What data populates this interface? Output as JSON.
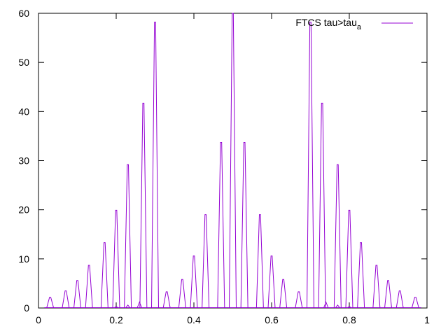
{
  "chart_data": {
    "type": "line",
    "title": "",
    "xlabel": "",
    "ylabel": "",
    "xlim": [
      0,
      1
    ],
    "ylim": [
      0,
      60
    ],
    "x_ticks": [
      "0",
      "0.2",
      "0.4",
      "0.6",
      "0.8",
      "1"
    ],
    "y_ticks": [
      "0",
      "10",
      "20",
      "30",
      "40",
      "50",
      "60"
    ],
    "grid": false,
    "legend_position": "top-right",
    "series": [
      {
        "name": "FTCS tau>tau",
        "name_subscript": "a",
        "color": "#9400d3",
        "peaks": [
          {
            "x": 0.03,
            "y": 2.2
          },
          {
            "x": 0.07,
            "y": 3.5
          },
          {
            "x": 0.1,
            "y": 5.6
          },
          {
            "x": 0.13,
            "y": 8.7
          },
          {
            "x": 0.17,
            "y": 13.3
          },
          {
            "x": 0.2,
            "y": 19.9
          },
          {
            "x": 0.23,
            "y": 29.2
          },
          {
            "x": 0.27,
            "y": 41.7
          },
          {
            "x": 0.3,
            "y": 58.2
          },
          {
            "x": 0.33,
            "y": 3.3
          },
          {
            "x": 0.37,
            "y": 5.8
          },
          {
            "x": 0.4,
            "y": 10.6
          },
          {
            "x": 0.43,
            "y": 19.0
          },
          {
            "x": 0.47,
            "y": 33.7
          },
          {
            "x": 0.5,
            "y": 60.0
          },
          {
            "x": 0.53,
            "y": 33.7
          },
          {
            "x": 0.57,
            "y": 19.0
          },
          {
            "x": 0.6,
            "y": 10.6
          },
          {
            "x": 0.63,
            "y": 5.8
          },
          {
            "x": 0.67,
            "y": 3.3
          },
          {
            "x": 0.7,
            "y": 58.2
          },
          {
            "x": 0.73,
            "y": 41.7
          },
          {
            "x": 0.77,
            "y": 29.2
          },
          {
            "x": 0.8,
            "y": 19.9
          },
          {
            "x": 0.83,
            "y": 13.3
          },
          {
            "x": 0.87,
            "y": 8.7
          },
          {
            "x": 0.9,
            "y": 5.6
          },
          {
            "x": 0.93,
            "y": 3.5
          },
          {
            "x": 0.97,
            "y": 2.2
          }
        ],
        "secondary_bumps": [
          {
            "x": 0.26,
            "y": 1.2
          },
          {
            "x": 0.23,
            "y": 0.6
          },
          {
            "x": 0.2,
            "y": 0.3
          },
          {
            "x": 0.74,
            "y": 1.2
          },
          {
            "x": 0.77,
            "y": 0.6
          },
          {
            "x": 0.8,
            "y": 0.3
          }
        ]
      }
    ]
  }
}
